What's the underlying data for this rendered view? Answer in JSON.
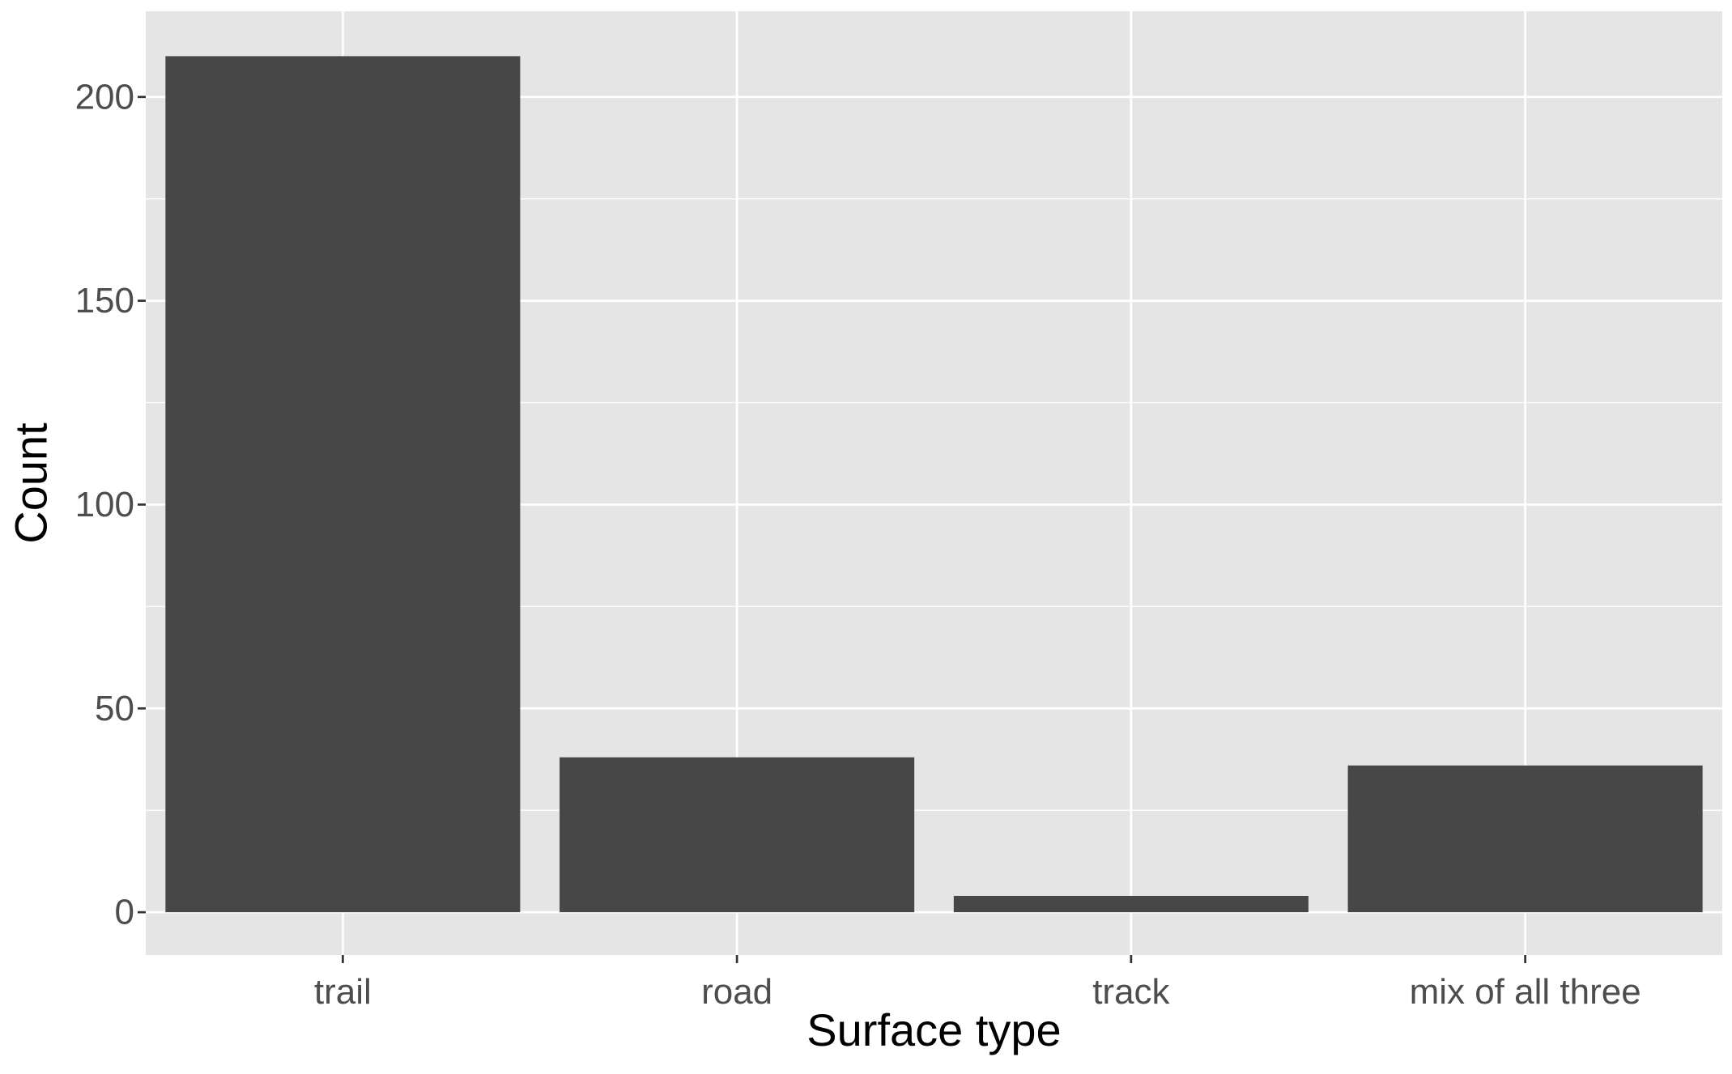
{
  "chart_data": {
    "type": "bar",
    "title": "",
    "xlabel": "Surface type",
    "ylabel": "Count",
    "categories": [
      "trail",
      "road",
      "track",
      "mix of all three"
    ],
    "values": [
      210,
      38,
      4,
      36
    ],
    "ylim": [
      -10.5,
      221
    ],
    "yticks": [
      0,
      50,
      100,
      150,
      200
    ],
    "yticks_minor": [
      25,
      75,
      125,
      175
    ],
    "grid": true,
    "legend": "none",
    "colors": {
      "panel_background": "#e5e5e5",
      "grid_line": "#ffffff",
      "bar_fill": "#474747",
      "tick_text": "#4d4d4d",
      "tick_mark": "#333333",
      "axis_title": "#000000"
    }
  }
}
